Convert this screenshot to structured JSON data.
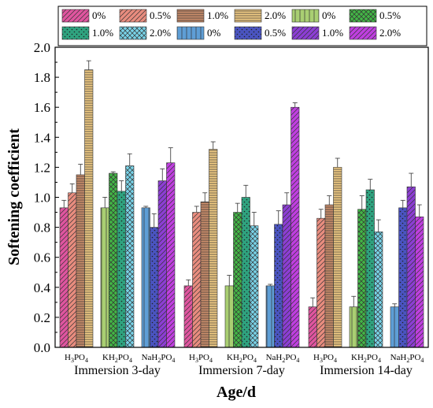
{
  "chart_data": {
    "type": "bar",
    "ylabel": "Softening coefficient",
    "xlabel": "Age/d",
    "ylim": [
      0,
      2.0
    ],
    "yticks": [
      "0.0",
      "0.2",
      "0.4",
      "0.6",
      "0.8",
      "1.0",
      "1.2",
      "1.4",
      "1.6",
      "1.8",
      "2.0"
    ],
    "acids": [
      {
        "name": "H3PO4",
        "base": "H",
        "sub": "3",
        "rest": "PO",
        "sub2": "4"
      },
      {
        "name": "KH2PO4",
        "base": "KH",
        "sub": "2",
        "rest": "PO",
        "sub2": "4"
      },
      {
        "name": "NaH2PO4",
        "base": "NaH",
        "sub": "2",
        "rest": "PO",
        "sub2": "4"
      }
    ],
    "concentrations": [
      "0%",
      "0.5%",
      "1.0%",
      "2.0%"
    ],
    "legend": [
      {
        "label": "0%",
        "color": "#e0559f",
        "pattern": "diag-r"
      },
      {
        "label": "0.5%",
        "color": "#e88c7e",
        "pattern": "diag-r"
      },
      {
        "label": "1.0%",
        "color": "#cc8e6b",
        "pattern": "horiz"
      },
      {
        "label": "2.0%",
        "color": "#f3cd84",
        "pattern": "horiz"
      },
      {
        "label": "0%",
        "color": "#a9cf72",
        "pattern": "vert"
      },
      {
        "label": "0.5%",
        "color": "#43b546",
        "pattern": "cross"
      },
      {
        "label": "1.0%",
        "color": "#2fa37f",
        "pattern": "dots"
      },
      {
        "label": "2.0%",
        "color": "#79d3e8",
        "pattern": "cross"
      },
      {
        "label": "0%",
        "color": "#5e9ed6",
        "pattern": "vert"
      },
      {
        "label": "0.5%",
        "color": "#4a54c0",
        "pattern": "dots"
      },
      {
        "label": "1.0%",
        "color": "#8c3ed4",
        "pattern": "diag-r"
      },
      {
        "label": "2.0%",
        "color": "#bf3fe0",
        "pattern": "diag-r"
      }
    ],
    "groups": [
      {
        "name": "Immersion 3-day",
        "values": [
          [
            0.93,
            1.03,
            1.15,
            1.85
          ],
          [
            0.93,
            1.16,
            1.04,
            1.21
          ],
          [
            0.93,
            0.8,
            1.11,
            1.23
          ]
        ],
        "errors": [
          [
            0.05,
            0.06,
            0.07,
            0.06
          ],
          [
            0.07,
            0.01,
            0.07,
            0.08
          ],
          [
            0.01,
            0.09,
            0.08,
            0.1
          ]
        ]
      },
      {
        "name": "Immersion 7-day",
        "values": [
          [
            0.41,
            0.9,
            0.97,
            1.32
          ],
          [
            0.41,
            0.9,
            1.0,
            0.81
          ],
          [
            0.41,
            0.82,
            0.95,
            1.6
          ]
        ],
        "errors": [
          [
            0.04,
            0.04,
            0.06,
            0.05
          ],
          [
            0.07,
            0.06,
            0.08,
            0.09
          ],
          [
            0.01,
            0.09,
            0.08,
            0.03
          ]
        ]
      },
      {
        "name": "Immersion 14-day",
        "values": [
          [
            0.27,
            0.86,
            0.95,
            1.2
          ],
          [
            0.27,
            0.92,
            1.05,
            0.77
          ],
          [
            0.27,
            0.93,
            1.07,
            0.87
          ]
        ],
        "errors": [
          [
            0.06,
            0.06,
            0.06,
            0.06
          ],
          [
            0.07,
            0.09,
            0.07,
            0.08
          ],
          [
            0.02,
            0.05,
            0.09,
            0.08
          ]
        ]
      }
    ]
  }
}
